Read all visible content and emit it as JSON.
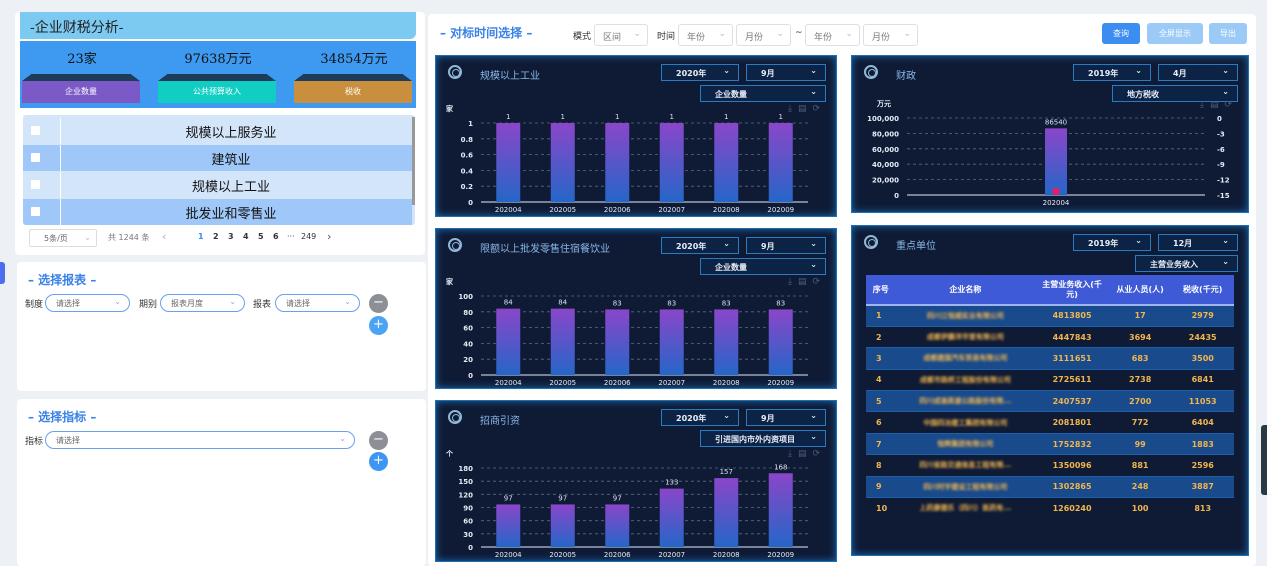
{
  "summary": {
    "title": "-企业财税分析-",
    "stats": [
      {
        "value": "23家",
        "label": "企业数量",
        "color": "#7b59c6"
      },
      {
        "value": "97638万元",
        "label": "公共预算收入",
        "color": "#11cec3"
      },
      {
        "value": "34854万元",
        "label": "税收",
        "color": "#c98f3e"
      }
    ]
  },
  "industries": [
    "规模以上服务业",
    "建筑业",
    "规模以上工业",
    "批发业和零售业"
  ],
  "pagination": {
    "page_size": "5条/页",
    "total": "共 1244 条",
    "prev": "‹",
    "pages": [
      "1",
      "2",
      "3",
      "4",
      "5",
      "6"
    ],
    "ellipsis": "···",
    "last": "249",
    "next": "›",
    "current": "1"
  },
  "report": {
    "title": "– 选择报表 –",
    "fields": [
      {
        "label": "制度",
        "value": "请选择"
      },
      {
        "label": "期别",
        "value": "报表月度"
      },
      {
        "label": "报表",
        "value": "请选择"
      }
    ],
    "minus": "−",
    "plus": "+"
  },
  "indicator": {
    "title": "– 选择指标 –",
    "label": "指标",
    "value": "请选择",
    "minus": "−",
    "plus": "+"
  },
  "toolbar": {
    "title": "– 对标时间选择 –",
    "mode_label": "模式",
    "mode": "区间",
    "time_label": "时间",
    "year1": "年份",
    "month1": "月份",
    "tilde": "~",
    "year2": "年份",
    "month2": "月份",
    "query": "查询",
    "fullscreen": "全屏显示",
    "export": "导出",
    "chevron": "⌄"
  },
  "colors": {
    "accent": "#3b8ef0",
    "panel_bg": "#0f1a35",
    "bar_top": "#8a46c9",
    "bar_bottom": "#2566c8",
    "table_header": "#3f5ad6"
  },
  "panels": {
    "industry": {
      "title": "规模以上工业",
      "year": "2020年",
      "month": "9月",
      "metric": "企业数量"
    },
    "wholesale": {
      "title": "限额以上批发零售住宿餐饮业",
      "year": "2020年",
      "month": "9月",
      "metric": "企业数量"
    },
    "invest": {
      "title": "招商引资",
      "year": "2020年",
      "month": "9月",
      "metric": "引进国内市外内资项目"
    },
    "finance": {
      "title": "财政",
      "year": "2019年",
      "month": "4月",
      "metric": "地方税收"
    },
    "key": {
      "title": "重点单位",
      "year": "2019年",
      "month": "12月",
      "metric": "主营业务收入"
    }
  },
  "chart_data": [
    {
      "id": "industry",
      "type": "bar",
      "ylabel": "家",
      "categories": [
        "202004",
        "202005",
        "202006",
        "202007",
        "202008",
        "202009"
      ],
      "values": [
        1,
        1,
        1,
        1,
        1,
        1
      ],
      "ylim": [
        0,
        1
      ],
      "yticks": [
        "0",
        "0.2",
        "0.4",
        "0.6",
        "0.8",
        "1"
      ],
      "grid": true
    },
    {
      "id": "wholesale",
      "type": "bar",
      "ylabel": "家",
      "categories": [
        "202004",
        "202005",
        "202006",
        "202007",
        "202008",
        "202009"
      ],
      "values": [
        84,
        84,
        83,
        83,
        83,
        83
      ],
      "ylim": [
        0,
        100
      ],
      "yticks": [
        "0",
        "20",
        "40",
        "60",
        "80",
        "100"
      ],
      "grid": true
    },
    {
      "id": "invest",
      "type": "bar",
      "ylabel": "个",
      "categories": [
        "202004",
        "202005",
        "202006",
        "202007",
        "202008",
        "202009"
      ],
      "values": [
        97,
        97,
        97,
        133,
        157,
        168
      ],
      "ylim": [
        0,
        180
      ],
      "yticks": [
        "0",
        "30",
        "60",
        "90",
        "120",
        "150",
        "180"
      ],
      "grid": true
    },
    {
      "id": "finance",
      "type": "bar",
      "ylabel": "万元",
      "categories": [
        "202004"
      ],
      "values": [
        86540
      ],
      "value_labels": [
        "86540"
      ],
      "ylim": [
        0,
        100000
      ],
      "yticks": [
        "0",
        "20,000",
        "40,000",
        "60,000",
        "80,000",
        "100,000"
      ],
      "y2ticks": [
        "-15",
        "-12",
        "-9",
        "-6",
        "-3",
        "0"
      ],
      "y2lim": [
        -15,
        0
      ],
      "line_values": [
        -14.3
      ],
      "grid": true
    }
  ],
  "key_table": {
    "headers": [
      "序号",
      "企业名称",
      "主营业务收入(千元)",
      "从业人员(人)",
      "税收(千元)"
    ],
    "rows": [
      [
        "1",
        "四川江恒威实业有限公司",
        "4813805",
        "17",
        "2979"
      ],
      [
        "2",
        "成都伊藤洋华堂有限公司",
        "4447843",
        "3694",
        "24435"
      ],
      [
        "3",
        "成都建国汽车贸易有限公司",
        "3111651",
        "683",
        "3500"
      ],
      [
        "4",
        "成都市路桥工程股份有限公司",
        "2725611",
        "2738",
        "6841"
      ],
      [
        "5",
        "四川成渝高速公路股份有限...",
        "2407537",
        "2700",
        "11053"
      ],
      [
        "6",
        "中国四冶建工集团有限公司",
        "2081801",
        "772",
        "6404"
      ],
      [
        "7",
        "恒辉集团有限公司",
        "1752832",
        "99",
        "1883"
      ],
      [
        "8",
        "四川省路交通信息工程有限...",
        "1350096",
        "881",
        "2596"
      ],
      [
        "9",
        "四川时宇建设工程有限公司",
        "1302865",
        "248",
        "3887"
      ],
      [
        "10",
        "上药康德乐（四川）医药有...",
        "1260240",
        "100",
        "813"
      ]
    ]
  }
}
